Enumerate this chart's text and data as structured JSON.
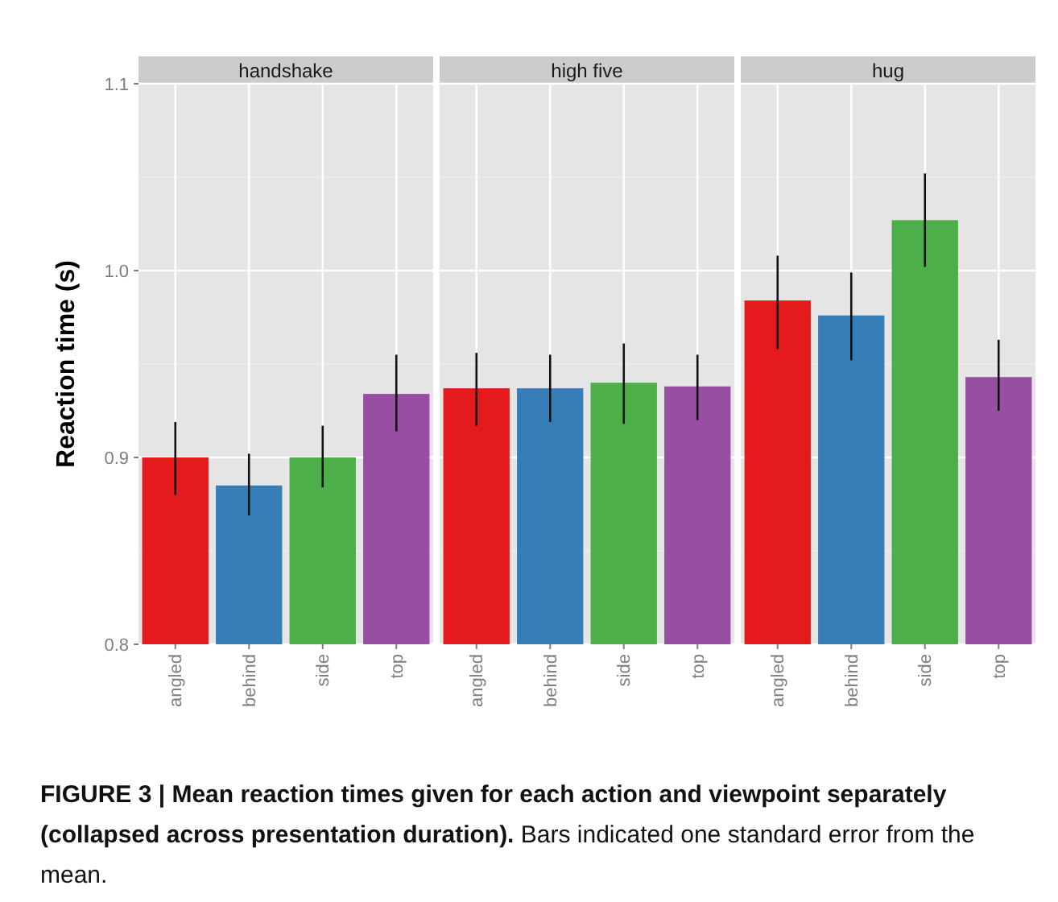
{
  "chart_data": [
    {
      "type": "bar",
      "title": "handshake",
      "ylabel": "Reaction time (s)",
      "categories": [
        "angled",
        "behind",
        "side",
        "top"
      ],
      "values": [
        0.9,
        0.885,
        0.9,
        0.934
      ],
      "colors": [
        "#e41a1c",
        "#377eb8",
        "#4daf4a",
        "#984ea3"
      ],
      "errors": [
        [
          0.88,
          0.919
        ],
        [
          0.869,
          0.902
        ],
        [
          0.884,
          0.917
        ],
        [
          0.914,
          0.955
        ]
      ],
      "ylim": [
        0.8,
        1.1
      ],
      "yticks": [
        {
          "value": 0.8,
          "label": "0.8"
        },
        {
          "value": 0.9,
          "label": "0.9"
        },
        {
          "value": 1.0,
          "label": "1.0"
        },
        {
          "value": 1.1,
          "label": "1.1"
        }
      ],
      "grid": true,
      "annotations": [
        "FIGURE 3 | Mean reaction times given for each action and viewpoint separately (collapsed across presentation duration).",
        "Bars indicated one standard error from the mean."
      ]
    },
    {
      "type": "bar",
      "title": "high five",
      "categories": [
        "angled",
        "behind",
        "side",
        "top"
      ],
      "values": [
        0.937,
        0.937,
        0.94,
        0.938
      ],
      "colors": [
        "#e41a1c",
        "#377eb8",
        "#4daf4a",
        "#984ea3"
      ],
      "errors": [
        [
          0.917,
          0.956
        ],
        [
          0.919,
          0.955
        ],
        [
          0.918,
          0.961
        ],
        [
          0.92,
          0.955
        ]
      ],
      "ylim": [
        0.8,
        1.1
      ],
      "grid": true,
      "tick_labels": "x"
    },
    {
      "type": "bar",
      "title": "hug",
      "categories": [
        "angled",
        "behind",
        "side",
        "top"
      ],
      "values": [
        0.984,
        0.976,
        1.027,
        0.943
      ],
      "colors": [
        "#e41a1c",
        "#377eb8",
        "#4daf4a",
        "#984ea3"
      ],
      "errors": [
        [
          0.958,
          1.008
        ],
        [
          0.952,
          0.999
        ],
        [
          1.002,
          1.052
        ],
        [
          0.925,
          0.963
        ]
      ],
      "ylim": [
        0.8,
        1.1
      ],
      "grid": true,
      "tick_labels": "x"
    }
  ]
}
